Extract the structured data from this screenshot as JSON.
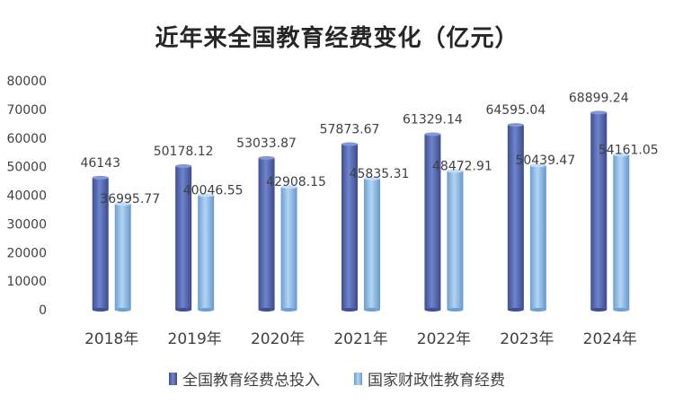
{
  "chart_data": {
    "type": "bar",
    "title": "近年来全国教育经费变化（亿元）",
    "categories": [
      "2018年",
      "2019年",
      "2020年",
      "2021年",
      "2022年",
      "2023年",
      "2024年"
    ],
    "series": [
      {
        "name": "全国教育经费总投入",
        "values": [
          46143,
          50178.12,
          53033.87,
          57873.67,
          61329.14,
          64595.04,
          68899.24
        ],
        "labels": [
          "46143",
          "50178.12",
          "53033.87",
          "57873.67",
          "61329.14",
          "64595.04",
          "68899.24"
        ],
        "color": "#5266b0"
      },
      {
        "name": "国家财政性教育经费",
        "values": [
          36995.77,
          40046.55,
          42908.15,
          45835.31,
          48472.91,
          50439.47,
          54161.05
        ],
        "labels": [
          "36995.77",
          "40046.55",
          "42908.15",
          "45835.31",
          "48472.91",
          "50439.47",
          "54161.05"
        ],
        "color": "#7fb2e0"
      }
    ],
    "yticks": [
      "0",
      "10000",
      "20000",
      "30000",
      "40000",
      "50000",
      "60000",
      "70000",
      "80000"
    ],
    "ylim": [
      0,
      80000
    ],
    "grid": false,
    "legend": "bottom"
  }
}
